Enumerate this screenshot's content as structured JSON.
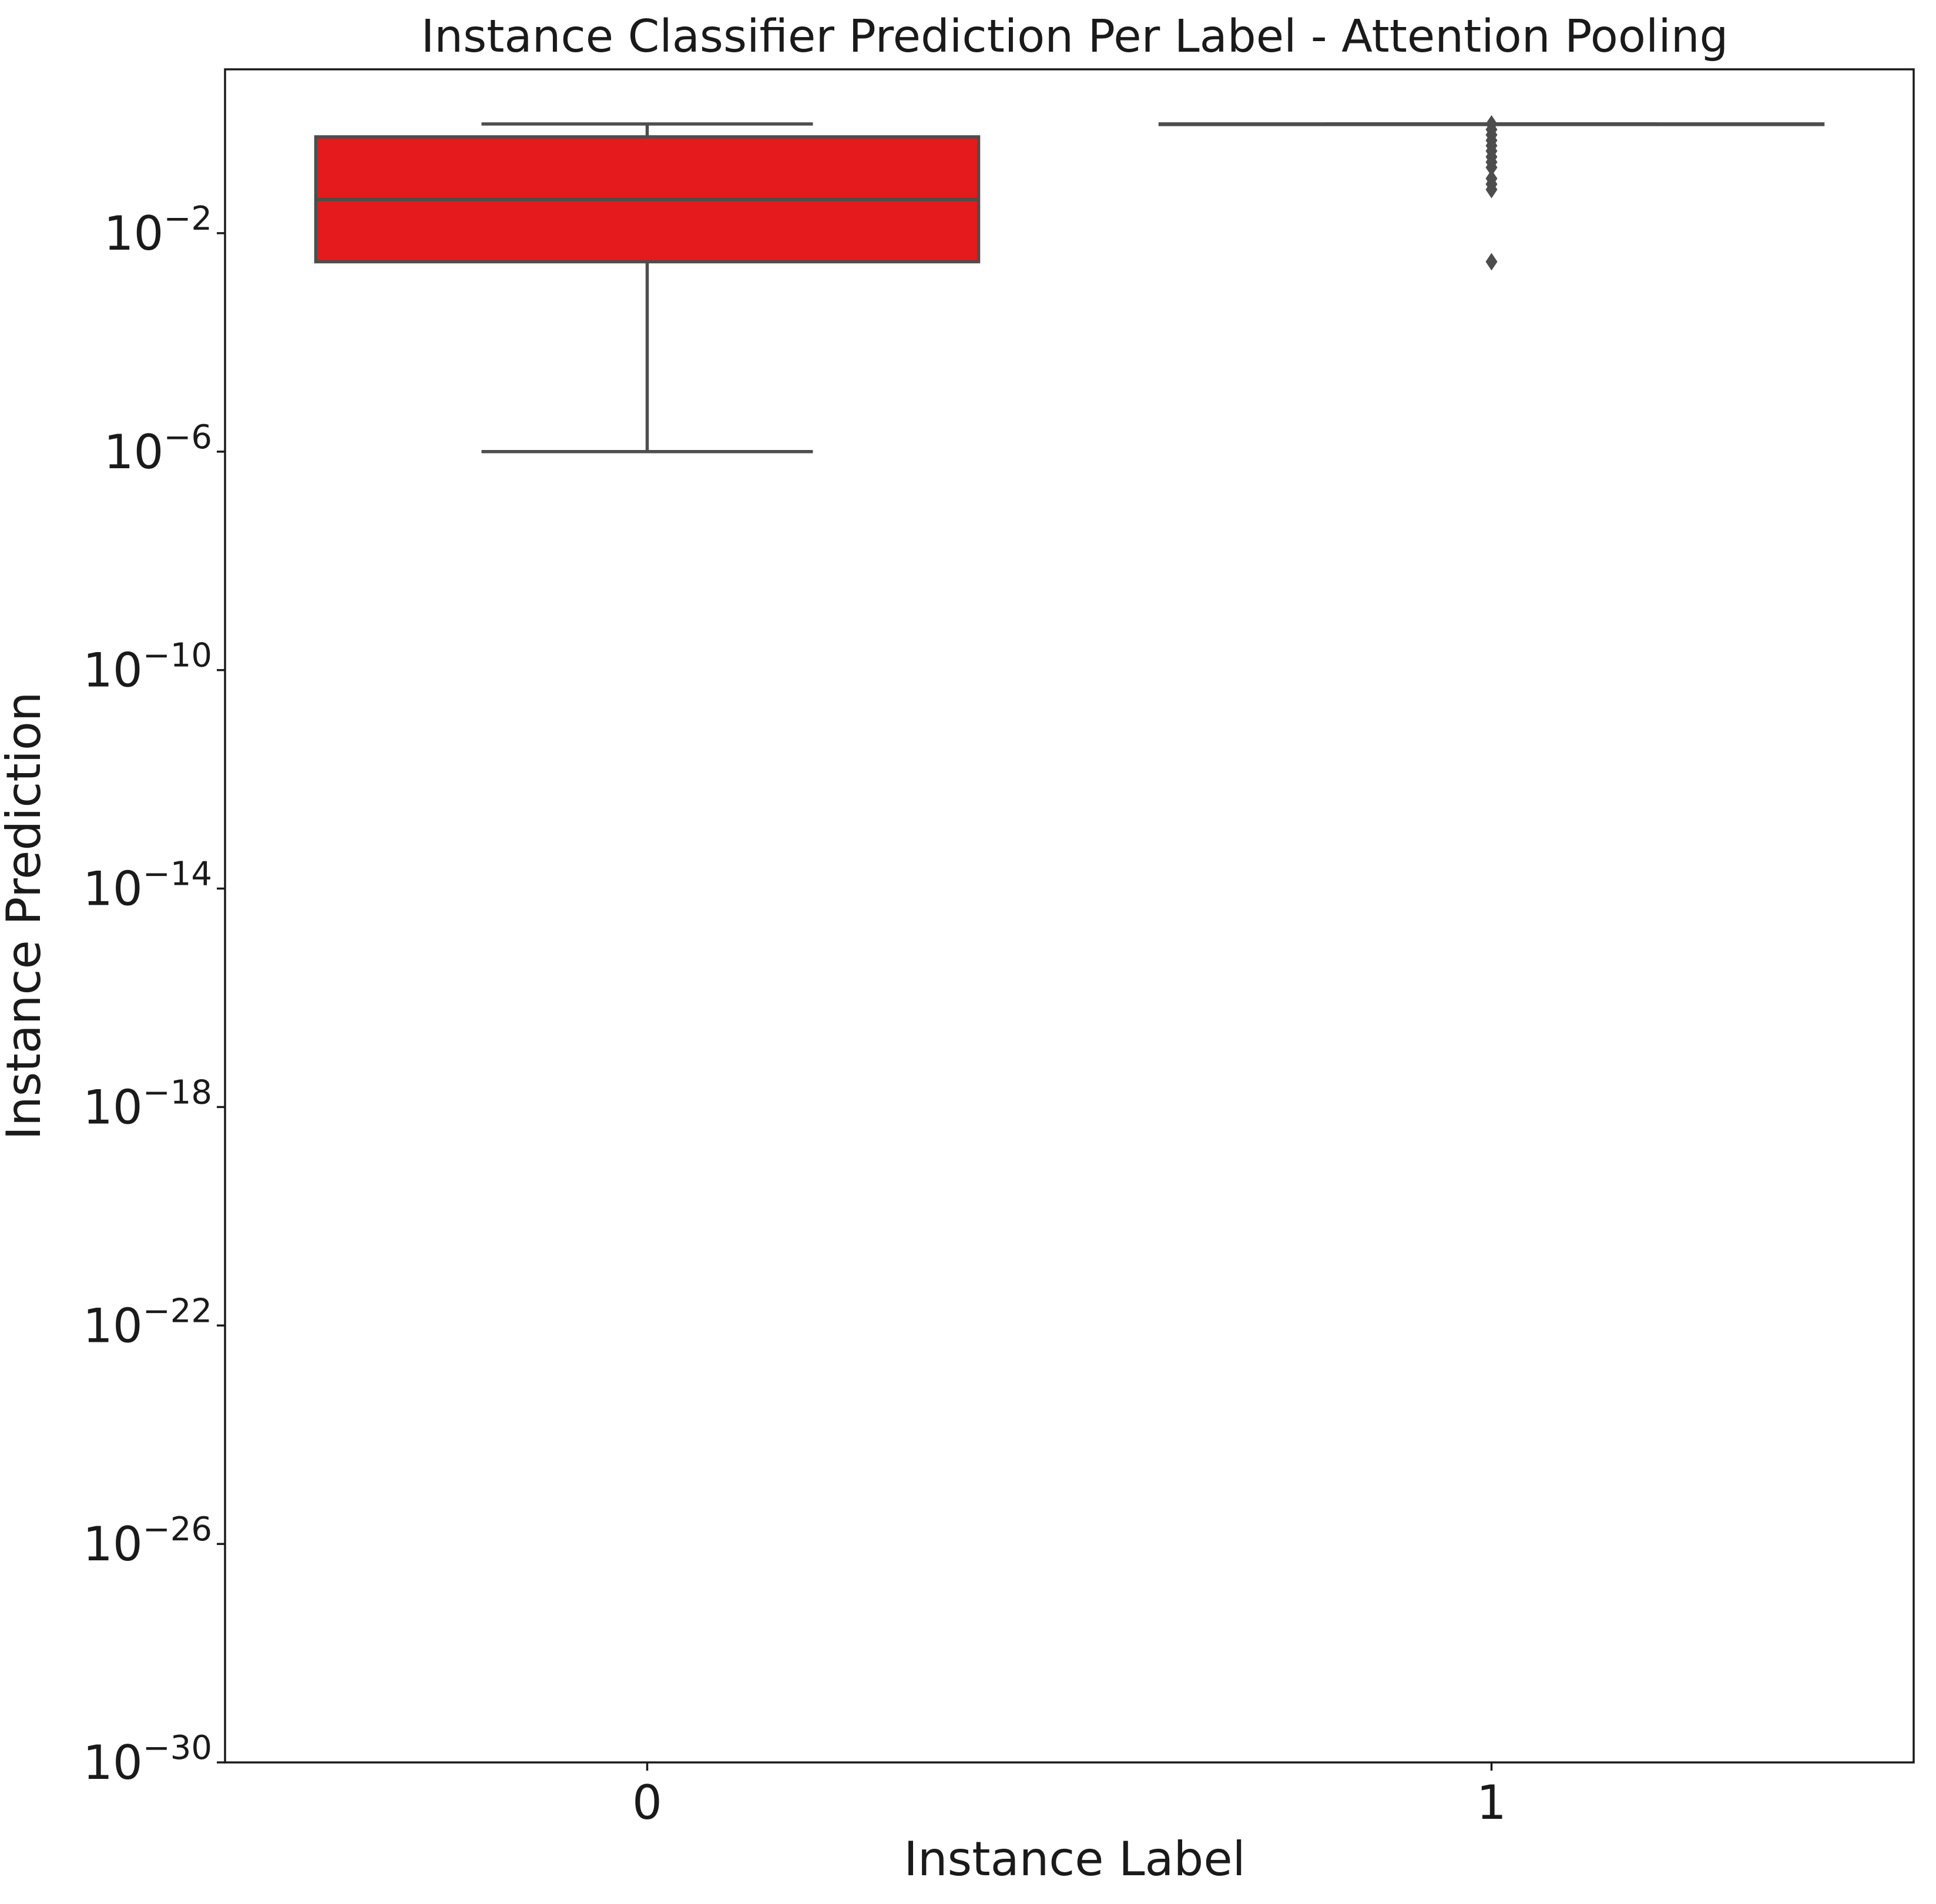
{
  "chart_data": {
    "type": "box",
    "title": "Instance Classifier Prediction Per Label - Attention Pooling",
    "xlabel": "Instance Label",
    "ylabel": "Instance Prediction",
    "yscale": "log",
    "ylim": [
      1e-30,
      10
    ],
    "ytick_exponents": [
      -2,
      -6,
      -10,
      -14,
      -18,
      -22,
      -26,
      -30
    ],
    "ytick_base": "10",
    "ytick_labels": [
      "10−2",
      "10−6",
      "10−10",
      "10−14",
      "10−18",
      "10−22",
      "10−26",
      "10−30"
    ],
    "categories": [
      "0",
      "1"
    ],
    "grid": false,
    "legend": "none",
    "boxes": [
      {
        "category": "0",
        "color": "#e41a1c",
        "whisker_low": 1e-06,
        "q1": 0.003,
        "median": 0.0415,
        "q3": 0.58,
        "whisker_high": 1.0,
        "outliers": []
      },
      {
        "category": "1",
        "color": "#e41a1c",
        "whisker_low": 0.98,
        "q1": 0.99,
        "median": 0.995,
        "q3": 1.0,
        "whisker_high": 1.0,
        "outliers": [
          0.003,
          0.063,
          0.079,
          0.1,
          0.16,
          0.2,
          0.25,
          0.32,
          0.4,
          0.5,
          0.63,
          0.79,
          1.0
        ]
      }
    ],
    "line_color": "#4d4d4d"
  }
}
